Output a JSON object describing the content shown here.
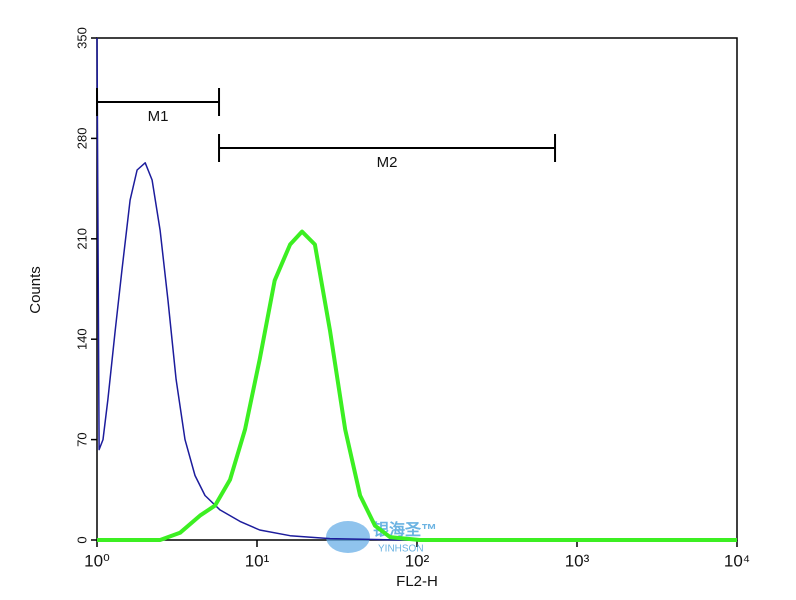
{
  "chart_data": {
    "type": "line",
    "y_label": "Counts",
    "x_label": "FL2-H",
    "xscale": "log",
    "xlim": [
      1,
      10000
    ],
    "ylim": [
      0,
      350
    ],
    "xticks": [
      {
        "value": 1,
        "label": "10⁰"
      },
      {
        "value": 10,
        "label": "10¹"
      },
      {
        "value": 100,
        "label": "10²"
      },
      {
        "value": 1000,
        "label": "10³"
      },
      {
        "value": 10000,
        "label": "10⁴"
      }
    ],
    "yticks": [
      0,
      70,
      140,
      210,
      280,
      350
    ],
    "series": [
      {
        "color": "#1c1c9c",
        "width": 1.5,
        "x": [
          1,
          1.03,
          1.09,
          1.17,
          1.3,
          1.43,
          1.61,
          1.78,
          2.0,
          2.21,
          2.48,
          2.78,
          3.12,
          3.55,
          4.1,
          4.73,
          5.87,
          7.83,
          10.4,
          16.1,
          28.6,
          78.3,
          10000
        ],
        "values": [
          350,
          63,
          70,
          98,
          146,
          188,
          237,
          258,
          263,
          251,
          216,
          167,
          112,
          70,
          45,
          31,
          21,
          13,
          7,
          3,
          1,
          0,
          0
        ]
      },
      {
        "color": "#3cef22",
        "width": 4,
        "x": [
          1,
          2.48,
          3.3,
          4.4,
          5.46,
          6.78,
          8.42,
          10.4,
          12.9,
          16.1,
          19.1,
          23.0,
          28.6,
          35.6,
          44.1,
          54.6,
          67.9,
          104,
          10000
        ],
        "values": [
          0,
          0,
          5,
          17,
          24,
          42,
          77,
          126,
          181,
          206,
          215,
          206,
          146,
          77,
          31,
          10,
          2,
          0,
          0
        ]
      }
    ],
    "markers": [
      {
        "label": "M1",
        "range": [
          1,
          5.79
        ]
      },
      {
        "label": "M2",
        "range": [
          5.79,
          729
        ]
      }
    ],
    "watermark": {
      "text": "银海圣™",
      "subtext": "YINHSON"
    }
  }
}
